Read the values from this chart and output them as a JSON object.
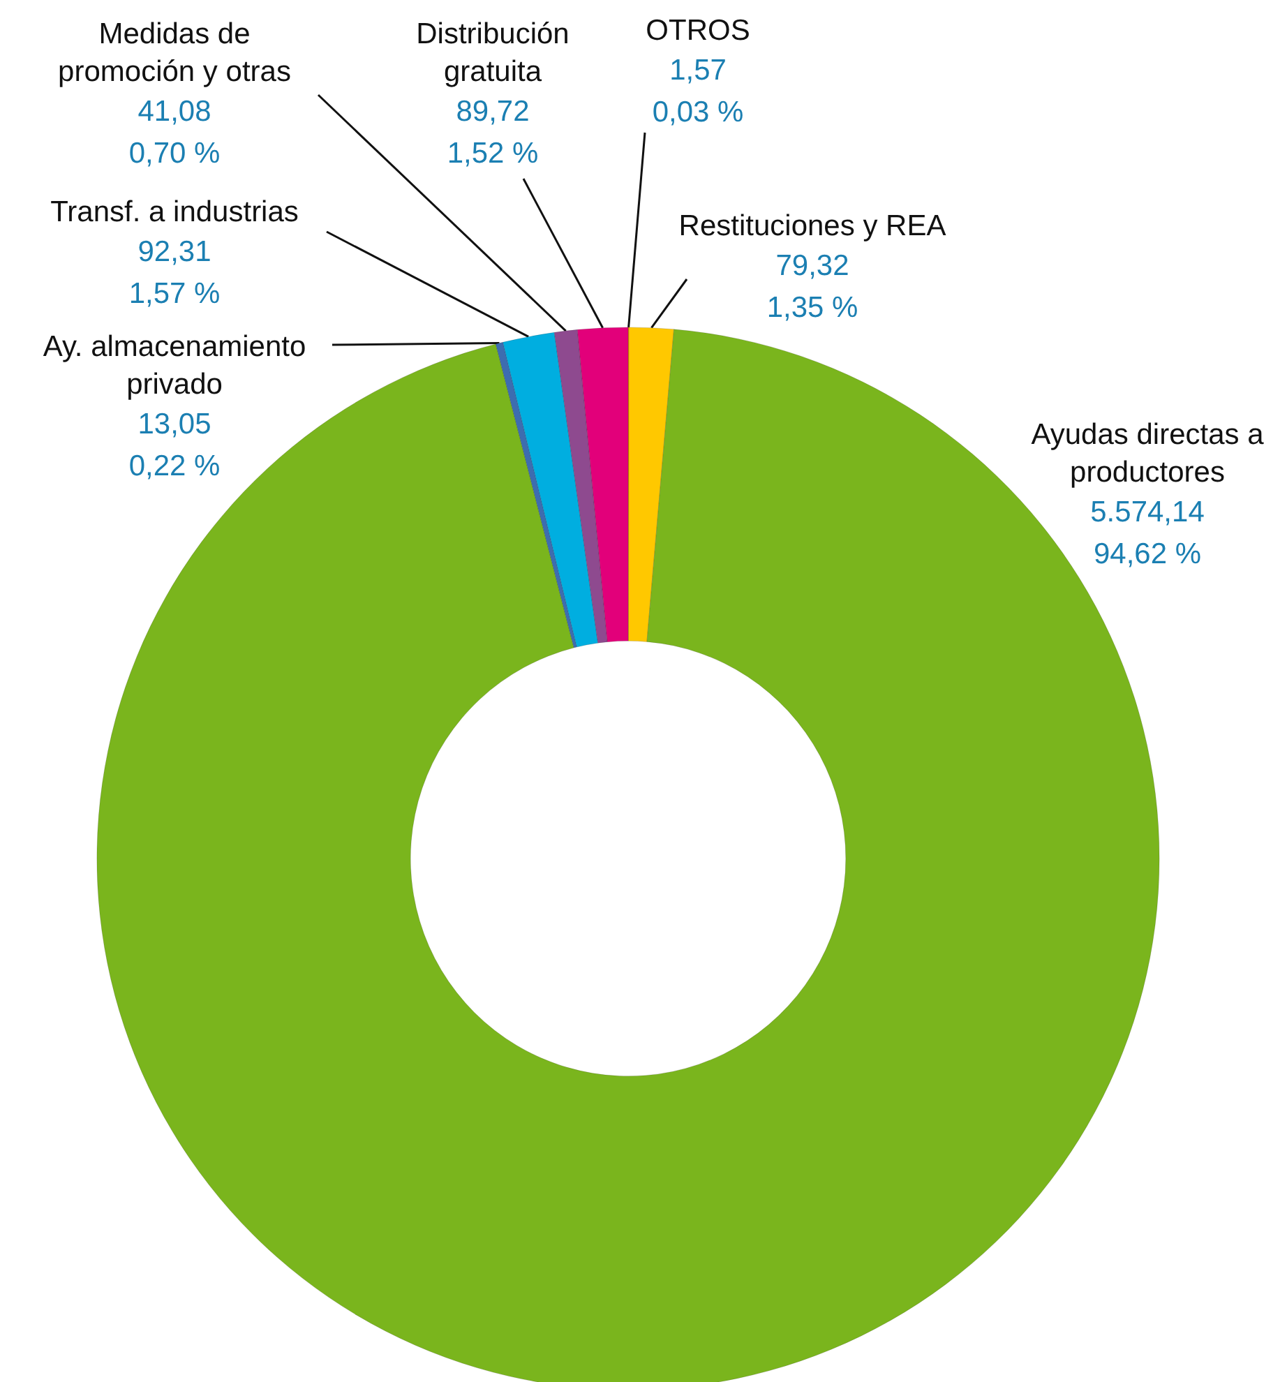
{
  "chart_data": {
    "type": "donut",
    "categories": [
      "OTROS",
      "Restituciones y REA",
      "Ayudas directas a productores",
      "Ay. almacenamiento privado",
      "Transf. a industrias",
      "Medidas de promoción y otras",
      "Distribución gratuita"
    ],
    "values": [
      1.57,
      79.32,
      5574.14,
      13.05,
      92.31,
      41.08,
      89.72
    ],
    "colors": [
      "#f0a000",
      "#ffc800",
      "#7ab51d",
      "#3d6db0",
      "#00aee0",
      "#8e4a8f",
      "#e2007a"
    ],
    "value_labels": [
      "1,57\n0,03 %",
      "79,32\n1,35 %",
      "5.574,14\n94,62 %",
      "13,05\n0,22 %",
      "92,31\n1,57 %",
      "41,08\n0,70 %",
      "89,72\n1,52 %"
    ]
  }
}
